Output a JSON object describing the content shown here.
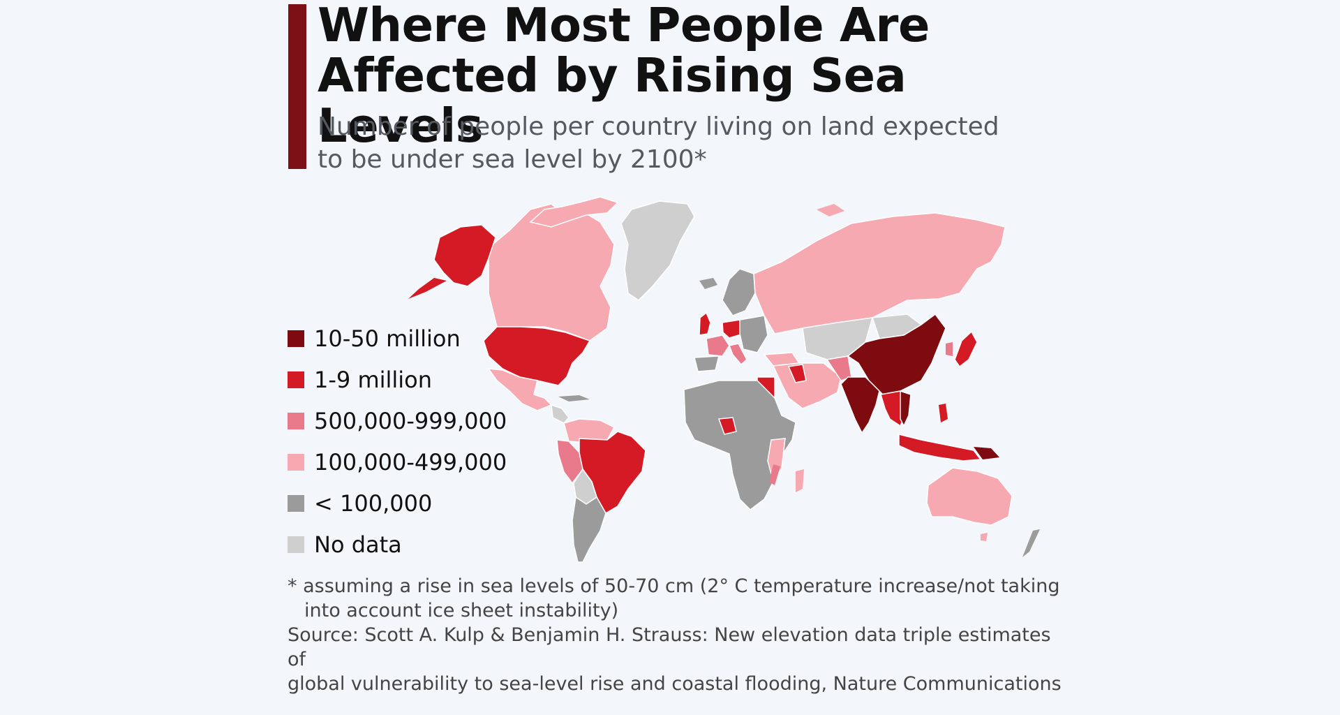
{
  "header": {
    "title_line1": "Where Most People Are",
    "title_line2": "Affected by Rising Sea Levels",
    "subtitle_line1": "Number of people per country living on land expected",
    "subtitle_line2": "to be under sea level by 2100*"
  },
  "colors": {
    "accent": "#7d1016",
    "c10_50m": "#7d0b0f",
    "c1_9m": "#d41b25",
    "c500k": "#e87a8b",
    "c100k": "#f7a9b2",
    "lt100k": "#9b9b9b",
    "nodata": "#cfcfcf"
  },
  "legend": [
    {
      "label": "10-50 million",
      "color": "#7d0b0f"
    },
    {
      "label": "1-9 million",
      "color": "#d41b25"
    },
    {
      "label": "500,000-999,000",
      "color": "#e87a8b"
    },
    {
      "label": "100,000-499,000",
      "color": "#f7a9b2"
    },
    {
      "label": "< 100,000",
      "color": "#9b9b9b"
    },
    {
      "label": "No data",
      "color": "#cfcfcf"
    }
  ],
  "map": {
    "regions": [
      {
        "name": "China",
        "category": "10-50 million"
      },
      {
        "name": "India",
        "category": "10-50 million"
      },
      {
        "name": "Vietnam",
        "category": "10-50 million"
      },
      {
        "name": "Bangladesh",
        "category": "10-50 million"
      },
      {
        "name": "Indonesia",
        "category": "1-9 million"
      },
      {
        "name": "Japan",
        "category": "1-9 million"
      },
      {
        "name": "United States",
        "category": "1-9 million"
      },
      {
        "name": "Alaska",
        "category": "1-9 million"
      },
      {
        "name": "Brazil",
        "category": "1-9 million"
      },
      {
        "name": "Egypt",
        "category": "1-9 million"
      },
      {
        "name": "Nigeria",
        "category": "1-9 million"
      },
      {
        "name": "Thailand",
        "category": "1-9 million"
      },
      {
        "name": "Iraq",
        "category": "1-9 million"
      },
      {
        "name": "Netherlands",
        "category": "1-9 million"
      },
      {
        "name": "United Kingdom",
        "category": "1-9 million"
      },
      {
        "name": "Germany",
        "category": "1-9 million"
      },
      {
        "name": "Philippines",
        "category": "1-9 million"
      },
      {
        "name": "Italy",
        "category": "500,000-999,000"
      },
      {
        "name": "France",
        "category": "500,000-999,000"
      },
      {
        "name": "Pakistan",
        "category": "500,000-999,000"
      },
      {
        "name": "Mozambique",
        "category": "500,000-999,000"
      },
      {
        "name": "Ecuador",
        "category": "500,000-999,000"
      },
      {
        "name": "Canada",
        "category": "100,000-499,000"
      },
      {
        "name": "Russia",
        "category": "100,000-499,000"
      },
      {
        "name": "Australia",
        "category": "100,000-499,000"
      },
      {
        "name": "Mexico",
        "category": "100,000-499,000"
      },
      {
        "name": "Madagascar",
        "category": "100,000-499,000"
      },
      {
        "name": "Tanzania",
        "category": "100,000-499,000"
      },
      {
        "name": "Venezuela",
        "category": "100,000-499,000"
      },
      {
        "name": "Turkey",
        "category": "100,000-499,000"
      },
      {
        "name": "Iran",
        "category": "100,000-499,000"
      },
      {
        "name": "Saudi Arabia",
        "category": "100,000-499,000"
      },
      {
        "name": "Greenland",
        "category": "No data"
      },
      {
        "name": "Kazakhstan",
        "category": "No data"
      },
      {
        "name": "Mongolia",
        "category": "No data"
      },
      {
        "name": "Africa (other)",
        "category": "< 100,000"
      },
      {
        "name": "Argentina",
        "category": "< 100,000"
      },
      {
        "name": "Scandinavia",
        "category": "< 100,000"
      },
      {
        "name": "New Zealand",
        "category": "< 100,000"
      }
    ]
  },
  "footer": {
    "note_line1": "* assuming a rise in sea levels of 50-70 cm (2° C temperature increase/not taking",
    "note_line2": "into account ice sheet instability)",
    "source_line1": "Source: Scott A. Kulp & Benjamin H. Strauss: New elevation data triple estimates of",
    "source_line2": "global vulnerability to sea-level rise and coastal flooding, Nature Communications"
  }
}
